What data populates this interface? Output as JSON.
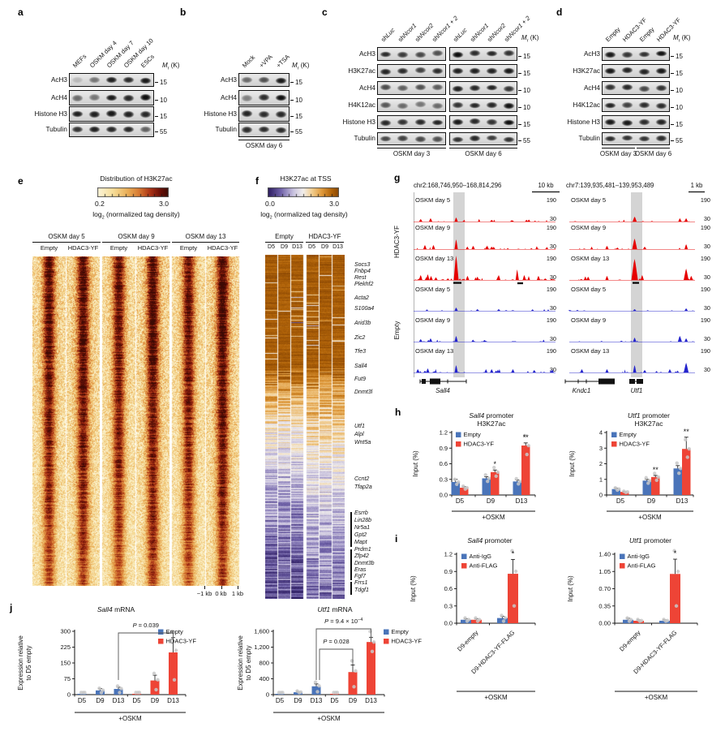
{
  "colors": {
    "bar_blue": "#4a74b9",
    "bar_red": "#ee4436",
    "dot_gray": "#c8c8c8",
    "track_red": "#e60000",
    "track_blue": "#2323cc",
    "highlight": "#c9c9c9",
    "heat_e_low": "#fcf5d8",
    "heat_e_high": "#3d0a04",
    "heat_f_low": "#2a195e",
    "heat_f_high": "#8a4703"
  },
  "letters": {
    "h": "h",
    "i": "i",
    "j": "j"
  },
  "mr_label": {
    "m": "M",
    "sub": "r",
    "rest": " (K)"
  },
  "panel_a": {
    "letter": "a",
    "lane_sets": [
      [
        [
          {
            "t": "MEFs"
          }
        ],
        [
          {
            "t": "OSKM day 4"
          }
        ],
        [
          {
            "t": "OSKM day 7"
          }
        ],
        [
          {
            "t": "OSKM day 10"
          }
        ],
        [
          {
            "t": "ESCs"
          }
        ]
      ]
    ],
    "rows": [
      {
        "label": "AcH3",
        "mr": "15",
        "bands": [
          [
            0.18,
            0.5,
            0.92,
            0.85,
            0.95
          ]
        ]
      },
      {
        "label": "AcH4",
        "mr": "10",
        "bands": [
          [
            0.55,
            0.5,
            0.95,
            0.88,
            1.0
          ]
        ]
      },
      {
        "label": "Histone H3",
        "mr": "15",
        "bands": [
          [
            0.92,
            0.92,
            0.96,
            0.92,
            0.88
          ]
        ]
      },
      {
        "label": "Tubulin",
        "mr": "55",
        "bands": [
          [
            0.82,
            0.92,
            0.88,
            0.88,
            0.6
          ]
        ]
      }
    ],
    "captions": []
  },
  "panel_b": {
    "letter": "b",
    "lane_sets": [
      [
        [
          {
            "t": "Mock"
          }
        ],
        [
          {
            "t": "+VPA"
          }
        ],
        [
          {
            "t": "+TSA"
          }
        ]
      ]
    ],
    "rows": [
      {
        "label": "AcH3",
        "mr": "15",
        "bands": [
          [
            0.55,
            0.68,
            0.95
          ]
        ]
      },
      {
        "label": "AcH4",
        "mr": "10",
        "bands": [
          [
            0.45,
            0.85,
            1.0
          ]
        ]
      },
      {
        "label": "Histone H3",
        "mr": "15",
        "bands": [
          [
            0.9,
            0.85,
            0.88
          ]
        ]
      },
      {
        "label": "Tubulin",
        "mr": "55",
        "bands": [
          [
            0.85,
            0.85,
            0.85
          ]
        ]
      }
    ],
    "captions": [
      "OSKM day 6"
    ]
  },
  "panel_c": {
    "letter": "c",
    "lane_sets": [
      [
        [
          {
            "t": "sh"
          },
          {
            "t": "Luc",
            "i": true
          }
        ],
        [
          {
            "t": "sh"
          },
          {
            "t": "Ncor1",
            "i": true
          }
        ],
        [
          {
            "t": "sh"
          },
          {
            "t": "Ncor2",
            "i": true
          }
        ],
        [
          {
            "t": "sh"
          },
          {
            "t": "Ncor1 + 2",
            "i": true
          }
        ]
      ],
      [
        [
          {
            "t": "sh"
          },
          {
            "t": "Luc",
            "i": true
          }
        ],
        [
          {
            "t": "sh"
          },
          {
            "t": "Ncor1",
            "i": true
          }
        ],
        [
          {
            "t": "sh"
          },
          {
            "t": "Ncor2",
            "i": true
          }
        ],
        [
          {
            "t": "sh"
          },
          {
            "t": "Ncor1 + 2",
            "i": true
          }
        ]
      ]
    ],
    "rows": [
      {
        "label": "AcH3",
        "mr": "15",
        "bands": [
          [
            0.85,
            0.78,
            0.72,
            0.68
          ],
          [
            1.0,
            0.85,
            0.88,
            0.82
          ]
        ]
      },
      {
        "label": "H3K27ac",
        "mr": "15",
        "bands": [
          [
            0.9,
            0.85,
            0.75,
            0.85
          ],
          [
            0.92,
            0.92,
            0.9,
            0.95
          ]
        ]
      },
      {
        "label": "AcH4",
        "mr": "10",
        "bands": [
          [
            0.7,
            0.6,
            0.68,
            0.62
          ],
          [
            0.92,
            0.88,
            0.9,
            0.8
          ]
        ]
      },
      {
        "label": "H4K12ac",
        "mr": "10",
        "bands": [
          [
            0.65,
            0.55,
            0.5,
            0.55
          ],
          [
            0.82,
            0.88,
            0.88,
            0.98
          ]
        ]
      },
      {
        "label": "Histone H3",
        "mr": "15",
        "bands": [
          [
            0.88,
            0.82,
            0.88,
            0.9
          ],
          [
            0.95,
            0.88,
            0.82,
            1.0
          ]
        ]
      },
      {
        "label": "Tubulin",
        "mr": "55",
        "bands": [
          [
            0.72,
            0.75,
            0.72,
            0.68
          ],
          [
            0.82,
            0.88,
            0.78,
            0.82
          ]
        ]
      }
    ],
    "captions": [
      "OSKM day 3",
      "OSKM day 6"
    ]
  },
  "panel_d": {
    "letter": "d",
    "lane_sets": [
      [
        [
          {
            "t": "Empty"
          }
        ],
        [
          {
            "t": "HDAC3-YF"
          }
        ],
        [
          {
            "t": "Empty"
          }
        ],
        [
          {
            "t": "HDAC3-YF"
          }
        ]
      ]
    ],
    "rows": [
      {
        "label": "AcH3",
        "mr": "15",
        "bands": [
          [
            0.95,
            0.8,
            0.82,
            0.98
          ]
        ]
      },
      {
        "label": "H3K27ac",
        "mr": "15",
        "bands": [
          [
            0.95,
            0.9,
            0.9,
            0.95
          ]
        ]
      },
      {
        "label": "AcH4",
        "mr": "10",
        "bands": [
          [
            0.82,
            0.88,
            0.72,
            0.82
          ]
        ]
      },
      {
        "label": "H4K12ac",
        "mr": "10",
        "bands": [
          [
            0.9,
            0.75,
            0.85,
            0.85
          ]
        ]
      },
      {
        "label": "Histone H3",
        "mr": "15",
        "bands": [
          [
            0.95,
            0.95,
            0.85,
            0.9
          ]
        ]
      },
      {
        "label": "Tubulin",
        "mr": "55",
        "bands": [
          [
            0.85,
            0.82,
            0.82,
            0.85
          ]
        ]
      }
    ],
    "captions": [
      "OSKM day 3",
      "OSKM day 6"
    ]
  },
  "panel_e": {
    "letter": "e",
    "title": "Distribution of H3K27ac",
    "cbar_min": "0.2",
    "cbar_max": "3.0",
    "cbar_label_pre": "log",
    "cbar_label_sub": "2",
    "cbar_label_post": " (normalized tag density)",
    "groups": [
      "OSKM day 5",
      "OSKM day 9",
      "OSKM day 13"
    ],
    "subcols": [
      "Empty",
      "HDAC3-YF"
    ],
    "xticks": [
      "−1 kb",
      "0 kb",
      "1 kb"
    ]
  },
  "panel_f": {
    "letter": "f",
    "title": "H3K27ac at TSS",
    "cbar_min": "0.0",
    "cbar_max": "3.0",
    "cbar_label_pre": "log",
    "cbar_label_sub": "2",
    "cbar_label_post": " (normalized tag density)",
    "groups": [
      "Empty",
      "HDAC3-YF"
    ],
    "subcols": [
      "D5",
      "D9",
      "D13"
    ],
    "genes": [
      {
        "n": "Socs3",
        "y": 327
      },
      {
        "n": "Fnbp4",
        "y": 335
      },
      {
        "n": "Rest",
        "y": 343
      },
      {
        "n": "Plekhf2",
        "y": 351
      },
      {
        "n": "Acta2",
        "y": 368
      },
      {
        "n": "S100a4",
        "y": 381
      },
      {
        "n": "Arid3b",
        "y": 399
      },
      {
        "n": "Zic2",
        "y": 417
      },
      {
        "n": "Tfe3",
        "y": 434
      },
      {
        "n": "Sall4",
        "y": 452
      },
      {
        "n": "Fut9",
        "y": 468
      },
      {
        "n": "Dnmt3l",
        "y": 484
      },
      {
        "n": "Utf1",
        "y": 526
      },
      {
        "n": "Alpl",
        "y": 536
      },
      {
        "n": "Wnt5a",
        "y": 546
      },
      {
        "n": "Ccnt2",
        "y": 591
      },
      {
        "n": "Tfap2a",
        "y": 601
      },
      {
        "n": "Esrrb",
        "y": 633
      },
      {
        "n": "Lin28b",
        "y": 642
      },
      {
        "n": "Nr5a1",
        "y": 651
      },
      {
        "n": "Gpt2",
        "y": 660
      },
      {
        "n": "Mapt",
        "y": 669
      },
      {
        "n": "Prdm1",
        "y": 678
      },
      {
        "n": "Zfp42",
        "y": 686
      },
      {
        "n": "Dnmt3b",
        "y": 695
      },
      {
        "n": "Eras",
        "y": 703
      },
      {
        "n": "Fgf7",
        "y": 711
      },
      {
        "n": "Frrs1",
        "y": 719
      },
      {
        "n": "Tdgf1",
        "y": 728
      }
    ]
  },
  "panel_g": {
    "letter": "g",
    "conditions": [
      "HDAC3-YF",
      "Empty"
    ],
    "days": [
      "OSKM day 5",
      "OSKM day 9",
      "OSKM day 13"
    ],
    "scale_hi": "190",
    "scale_lo": "30",
    "regions": [
      {
        "locus": "chr2:168,746,950–168,814,296",
        "scalebar": "10 kb",
        "genes": [
          "Sall4"
        ]
      },
      {
        "locus": "chr7:139,935,481–139,953,489",
        "scalebar": "1 kb",
        "genes": [
          "Kndc1",
          "Utf1"
        ]
      }
    ]
  },
  "chart_data": [
    {
      "id": "h1",
      "type": "bar",
      "title": {
        "it": "Sall4",
        "rest": " promoter"
      },
      "subtitle": "H3K27ac",
      "ylabel": [
        "Input (%)"
      ],
      "ymax": 1.2,
      "yticks": [
        "0.0",
        "0.3",
        "0.6",
        "0.9",
        "1.2"
      ],
      "categories": [
        "D5",
        "D9",
        "D13"
      ],
      "series": [
        {
          "name": "Empty",
          "color": "bar_blue",
          "values": [
            0.25,
            0.32,
            0.26
          ],
          "errors": [
            0.05,
            0.03,
            0.03
          ]
        },
        {
          "name": "HDAC3-YF",
          "color": "bar_red",
          "values": [
            0.14,
            0.44,
            0.95
          ],
          "errors": [
            0.02,
            0.04,
            0.05
          ]
        }
      ],
      "sig": [
        "",
        "*",
        "**"
      ],
      "xcaption": "+OSKM"
    },
    {
      "id": "h2",
      "type": "bar",
      "title": {
        "it": "Utf1",
        "rest": " promoter"
      },
      "subtitle": "H3K27ac",
      "ylabel": [
        "Input (%)"
      ],
      "ymax": 4,
      "yticks": [
        "0",
        "1",
        "2",
        "3",
        "4"
      ],
      "categories": [
        "D5",
        "D9",
        "D13"
      ],
      "series": [
        {
          "name": "Empty",
          "color": "bar_blue",
          "values": [
            0.38,
            0.92,
            1.7
          ],
          "errors": [
            0.06,
            0.08,
            0.18
          ]
        },
        {
          "name": "HDAC3-YF",
          "color": "bar_red",
          "values": [
            0.2,
            1.15,
            2.95
          ],
          "errors": [
            0.04,
            0.1,
            0.75
          ]
        }
      ],
      "sig": [
        "",
        "**",
        "**"
      ],
      "xcaption": "+OSKM"
    },
    {
      "id": "i1",
      "type": "bar",
      "title": {
        "it": "Sall4",
        "rest": " promoter"
      },
      "ylabel": [
        "Input (%)"
      ],
      "ymax": 1.2,
      "yticks": [
        "0.0",
        "0.3",
        "0.6",
        "0.9",
        "1.2"
      ],
      "categories": [
        "D9-empty",
        "D9-HDAC3-YF-FLAG"
      ],
      "series": [
        {
          "name": "Anti-IgG",
          "color": "bar_blue",
          "values": [
            0.06,
            0.09
          ],
          "errors": [
            0.02,
            0.03
          ]
        },
        {
          "name": "Anti-FLAG",
          "color": "bar_red",
          "values": [
            0.06,
            0.86
          ],
          "errors": [
            0.02,
            0.25
          ]
        }
      ],
      "sig": [
        "",
        "*"
      ],
      "xcaption": "+OSKM"
    },
    {
      "id": "i2",
      "type": "bar",
      "title": {
        "it": "Utf1",
        "rest": " promoter"
      },
      "ylabel": [
        "Input (%)"
      ],
      "ymax": 1.4,
      "yticks": [
        "0.00",
        "0.35",
        "0.70",
        "1.05",
        "1.40"
      ],
      "categories": [
        "D9-empty",
        "D9-HDAC3-YF-FLAG"
      ],
      "series": [
        {
          "name": "Anti-IgG",
          "color": "bar_blue",
          "values": [
            0.07,
            0.05
          ],
          "errors": [
            0.03,
            0.02
          ]
        },
        {
          "name": "Anti-FLAG",
          "color": "bar_red",
          "values": [
            0.05,
            1.0
          ],
          "errors": [
            0.02,
            0.3
          ]
        }
      ],
      "sig": [
        "",
        "*"
      ],
      "xcaption": "+OSKM"
    },
    {
      "id": "j1",
      "type": "bar",
      "layout": "sequential",
      "title": {
        "it": "Sall4",
        "rest": " mRNA"
      },
      "ylabel": [
        "Expression relative",
        "to D5 empty"
      ],
      "ymax": 300,
      "yticks": [
        "0",
        "75",
        "150",
        "225",
        "300"
      ],
      "categories": [
        "D5",
        "D9",
        "D13",
        "D5",
        "D9",
        "D13"
      ],
      "series": [
        {
          "name": "Empty",
          "color": "bar_blue",
          "values": [
            1,
            20,
            27
          ],
          "errors": [
            0.5,
            8,
            8
          ]
        },
        {
          "name": "HDAC3-YF",
          "color": "bar_red",
          "values": [
            1,
            67,
            200
          ],
          "errors": [
            0.5,
            25,
            70
          ]
        }
      ],
      "brackets": [
        {
          "from": 2,
          "to": 5,
          "label": "P = 0.039"
        }
      ],
      "xcaption": "+OSKM"
    },
    {
      "id": "j2",
      "type": "bar",
      "layout": "sequential",
      "title": {
        "it": "Utf1",
        "rest": " mRNA"
      },
      "ylabel": [
        "Expression relative",
        "to D5 empty"
      ],
      "ymax": 1600,
      "yticks": [
        "0",
        "400",
        "800",
        "1,200",
        "1,600"
      ],
      "categories": [
        "D5",
        "D9",
        "D13",
        "D5",
        "D9",
        "D13"
      ],
      "series": [
        {
          "name": "Empty",
          "color": "bar_blue",
          "values": [
            2,
            60,
            210
          ],
          "errors": [
            1,
            20,
            60
          ]
        },
        {
          "name": "HDAC3-YF",
          "color": "bar_red",
          "values": [
            5,
            570,
            1330
          ],
          "errors": [
            2,
            180,
            120
          ]
        }
      ],
      "brackets": [
        {
          "from": 2,
          "to": 5,
          "label": "P = 9.4 × 10",
          "sup": "−4"
        },
        {
          "from": 2,
          "to": 4,
          "label": "P = 0.028"
        }
      ],
      "xcaption": "+OSKM"
    }
  ]
}
